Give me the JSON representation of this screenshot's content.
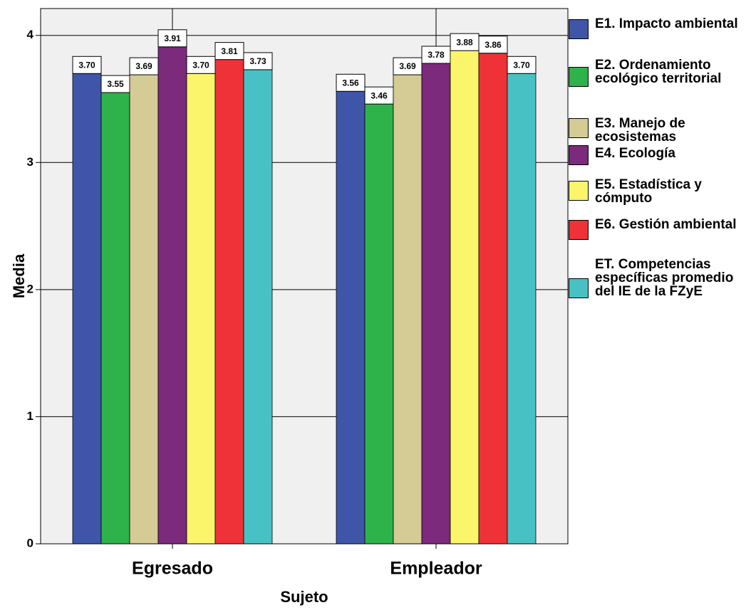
{
  "chart_data": {
    "type": "bar",
    "x_label": "Sujeto",
    "y_label": "Media",
    "categories": [
      "Egresado",
      "Empleador"
    ],
    "series": [
      {
        "name": "E1. Impacto ambiental",
        "color": "#3f56a8",
        "values": [
          3.7,
          3.56
        ],
        "value_labels": [
          "3.70",
          "3.56"
        ]
      },
      {
        "name": "E2. Ordenamiento ecológico territorial",
        "color": "#2db34a",
        "values": [
          3.55,
          3.46
        ],
        "value_labels": [
          "3.55",
          "3.46"
        ]
      },
      {
        "name": "E3. Manejo de ecosistemas",
        "color": "#d4cb95",
        "values": [
          3.69,
          3.69
        ],
        "value_labels": [
          "3.69",
          "3.69"
        ]
      },
      {
        "name": "E4. Ecología",
        "color": "#7b2a7c",
        "values": [
          3.91,
          3.78
        ],
        "value_labels": [
          "3.91",
          "3.78"
        ]
      },
      {
        "name": "E5. Estadística y cómputo",
        "color": "#fbf56b",
        "values": [
          3.7,
          3.88
        ],
        "value_labels": [
          "3.70",
          "3.88"
        ]
      },
      {
        "name": "E6. Gestión ambiental",
        "color": "#ee3238",
        "values": [
          3.81,
          3.86
        ],
        "value_labels": [
          "3.81",
          "3.86"
        ]
      },
      {
        "name": "ET. Competencias específicas promedio del IE de la FZyE",
        "color": "#48c1c4",
        "values": [
          3.73,
          3.7
        ],
        "value_labels": [
          "3.73",
          "3.70"
        ]
      }
    ],
    "ylim": [
      0,
      4.2
    ],
    "yticks": [
      0,
      1,
      2,
      3,
      4
    ],
    "grid": true
  }
}
